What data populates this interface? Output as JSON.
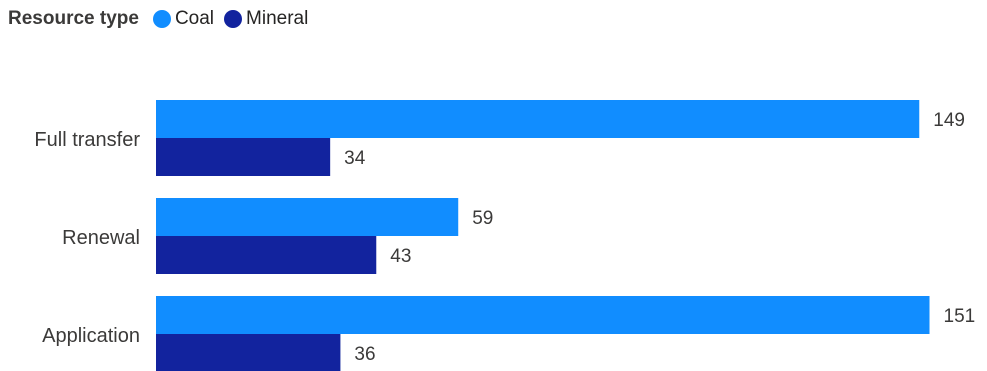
{
  "legend": {
    "title": "Resource type"
  },
  "colors": {
    "coal": "#118DFF",
    "mineral": "#12239E"
  },
  "chart_data": {
    "type": "bar",
    "orientation": "horizontal",
    "categories": [
      "Full transfer",
      "Renewal",
      "Application"
    ],
    "series": [
      {
        "name": "Coal",
        "values": [
          149,
          59,
          151
        ]
      },
      {
        "name": "Mineral",
        "values": [
          34,
          43,
          36
        ]
      }
    ],
    "title": "",
    "xlabel": "",
    "ylabel": "",
    "xlim": [
      0,
      155
    ],
    "grid": false,
    "legend_position": "top-left",
    "data_labels": true
  }
}
